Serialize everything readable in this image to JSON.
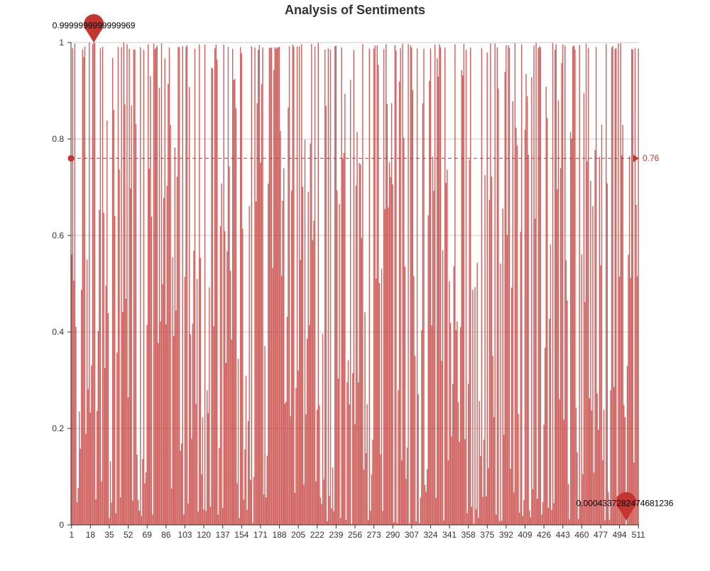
{
  "chart_data": {
    "type": "bar",
    "title": "Analysis of Sentiments",
    "xlabel": "",
    "ylabel": "",
    "ylim": [
      0,
      1
    ],
    "y_ticks": [
      "0",
      "0.2",
      "0.4",
      "0.6",
      "0.8",
      "1"
    ],
    "x_tick_labels": [
      "1",
      "18",
      "35",
      "52",
      "69",
      "86",
      "103",
      "120",
      "137",
      "154",
      "171",
      "188",
      "205",
      "222",
      "239",
      "256",
      "273",
      "290",
      "307",
      "324",
      "341",
      "358",
      "375",
      "392",
      "409",
      "426",
      "443",
      "460",
      "477",
      "494",
      "511"
    ],
    "n_points": 511,
    "series_color": "#c23531",
    "grid": true,
    "legend": "none",
    "mark_line": {
      "label": "0.76",
      "value": 0.76
    },
    "mark_points": [
      {
        "label": "0.9999999999999969",
        "x": 21,
        "y": 0.9999999999999969,
        "kind": "max"
      },
      {
        "label": "0.0004337282474681236",
        "x": 500,
        "y": 0.0004337282474681236,
        "kind": "min"
      }
    ],
    "values_note": "",
    "values_seed": 7
  }
}
